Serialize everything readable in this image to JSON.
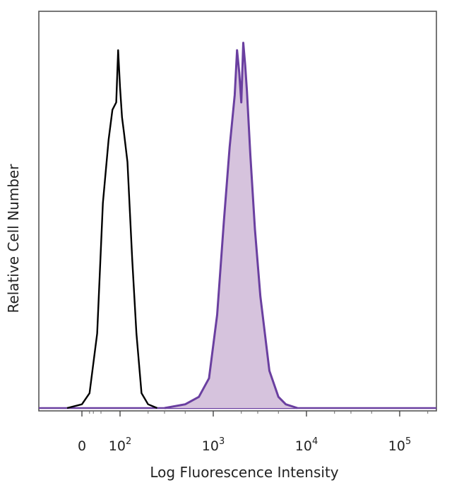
{
  "chart_data": {
    "type": "area",
    "title": "",
    "xlabel": "Log Fluorescence Intensity",
    "ylabel": "Relative Cell Number",
    "x_scale": "biexponential",
    "xlim": [
      -60,
      300000
    ],
    "ylim": [
      0,
      100
    ],
    "grid": false,
    "legend": "none",
    "x_ticks": [
      {
        "value": 0,
        "label": "0",
        "exp": ""
      },
      {
        "value": 100,
        "label": "10",
        "exp": "2"
      },
      {
        "value": 1000,
        "label": "10",
        "exp": "3"
      },
      {
        "value": 10000,
        "label": "10",
        "exp": "4"
      },
      {
        "value": 100000,
        "label": "10",
        "exp": "5"
      }
    ],
    "series": [
      {
        "style": "black-outline",
        "color": "#000000",
        "x": [
          -30,
          0,
          20,
          40,
          55,
          70,
          80,
          90,
          95,
          100,
          105,
          110,
          120,
          135,
          150,
          170,
          200,
          250
        ],
        "y": [
          0,
          1,
          4,
          20,
          55,
          72,
          80,
          82,
          96,
          86,
          78,
          74,
          66,
          40,
          20,
          4,
          1,
          0
        ]
      },
      {
        "style": "purple-filled",
        "color": "#6a3fa0",
        "fill": "#d6c3dd",
        "x": [
          300,
          500,
          700,
          900,
          1100,
          1300,
          1500,
          1700,
          1800,
          1900,
          2000,
          2100,
          2200,
          2300,
          2500,
          2800,
          3200,
          4000,
          5000,
          6000,
          8000
        ],
        "y": [
          0,
          1,
          3,
          8,
          25,
          50,
          70,
          84,
          96,
          90,
          82,
          98,
          92,
          85,
          68,
          48,
          30,
          10,
          3,
          1,
          0
        ]
      }
    ]
  }
}
